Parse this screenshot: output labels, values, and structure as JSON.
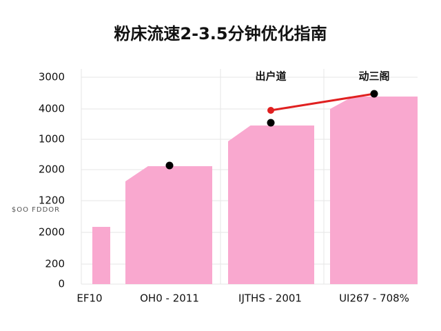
{
  "chart_data": {
    "type": "bar",
    "title": "粉床流速2-3.5分钟优化指南",
    "y_label": "$OO FDDOR",
    "categories": [
      "EF10",
      "OH0 - 2011",
      "IJTHS - 2001",
      "UI267 - 708%"
    ],
    "values": [
      830,
      1710,
      2300,
      2720
    ],
    "bar_left_values": [
      null,
      1490,
      2070,
      2540
    ],
    "color": "#f9a8cf",
    "points": [
      null,
      1720,
      2340,
      2760
    ],
    "point_color": "#000000",
    "line": {
      "color": "#e02020",
      "values": [
        null,
        null,
        2520,
        2760
      ]
    },
    "annotations": [
      {
        "text": "出户道",
        "category": 2
      },
      {
        "text": "动三阁",
        "category": 3
      }
    ],
    "ylim": [
      0,
      3000
    ],
    "yticks": [
      {
        "value": 3000,
        "label": "3000"
      },
      {
        "value": 2540,
        "label": "4000"
      },
      {
        "value": 2100,
        "label": "1000"
      },
      {
        "value": 1660,
        "label": "2000"
      },
      {
        "value": 1210,
        "label": "1200"
      },
      {
        "value": 750,
        "label": "2000"
      },
      {
        "value": 290,
        "label": "200"
      },
      0
    ],
    "grid": true
  }
}
